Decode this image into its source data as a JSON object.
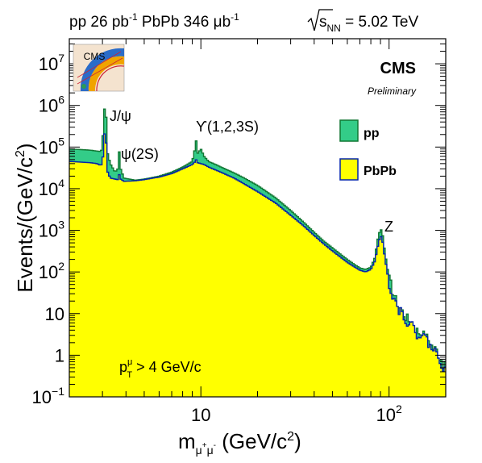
{
  "header": {
    "left_parts": [
      "pp 26 pb",
      "-1",
      " PbPb 346 μb",
      "-1"
    ],
    "right_parts": [
      "s",
      "NN",
      " = 5.02 TeV"
    ]
  },
  "cms": {
    "label": "CMS",
    "sublabel": "Preliminary",
    "logo_text": "CMS"
  },
  "cut_label": {
    "p": "p",
    "sup": "μ",
    "sub": "T",
    "rest": " > 4 GeV/c"
  },
  "colors": {
    "pp_fill": "#33cc88",
    "pp_line": "#117733",
    "pbpb_fill": "#ffff00",
    "pbpb_line": "#0022aa"
  },
  "chart_data": {
    "type": "area",
    "x_scale": "log",
    "y_scale": "log",
    "xlim": [
      2,
      200
    ],
    "ylim": [
      0.1,
      40000000
    ],
    "x_ticks": [
      {
        "v": 10,
        "label": "10"
      },
      {
        "v": 100,
        "label": "10",
        "sup": "2"
      }
    ],
    "y_ticks": [
      {
        "v": 0.1,
        "label": "10",
        "sup": "−1"
      },
      {
        "v": 1,
        "label": "1"
      },
      {
        "v": 10,
        "label": "10"
      },
      {
        "v": 100,
        "label": "10",
        "sup": "2"
      },
      {
        "v": 1000,
        "label": "10",
        "sup": "3"
      },
      {
        "v": 10000,
        "label": "10",
        "sup": "4"
      },
      {
        "v": 100000,
        "label": "10",
        "sup": "5"
      },
      {
        "v": 1000000,
        "label": "10",
        "sup": "6"
      },
      {
        "v": 10000000,
        "label": "10",
        "sup": "7"
      }
    ],
    "xlabel_parts": [
      "m",
      "μ",
      "+",
      "μ",
      "-",
      " (GeV/c",
      "2",
      ")"
    ],
    "ylabel_parts": [
      "Events/(GeV/c",
      "2",
      ")"
    ],
    "legend": [
      {
        "label": "pp",
        "series": 0
      },
      {
        "label": "PbPb",
        "series": 1
      }
    ],
    "legend_placement": "right",
    "annotations": [
      {
        "text": "J/ψ",
        "x": 3.1
      },
      {
        "text": "ψ(2S)",
        "x": 3.7
      },
      {
        "text": "ϒ(1,2,3S)",
        "x": 9.5
      },
      {
        "text": "Z",
        "x": 91
      }
    ],
    "series": [
      {
        "name": "pp",
        "points": [
          [
            2.0,
            90000
          ],
          [
            2.2,
            88000
          ],
          [
            2.4,
            86000
          ],
          [
            2.6,
            84000
          ],
          [
            2.8,
            80000
          ],
          [
            2.95,
            78000
          ],
          [
            3.02,
            200000
          ],
          [
            3.06,
            600000
          ],
          [
            3.1,
            1300000
          ],
          [
            3.14,
            500000
          ],
          [
            3.2,
            70000
          ],
          [
            3.3,
            40000
          ],
          [
            3.5,
            25000
          ],
          [
            3.62,
            30000
          ],
          [
            3.68,
            80000
          ],
          [
            3.75,
            30000
          ],
          [
            3.9,
            18000
          ],
          [
            4.5,
            16000
          ],
          [
            5,
            17000
          ],
          [
            6,
            20000
          ],
          [
            7,
            25000
          ],
          [
            8,
            33000
          ],
          [
            9,
            45000
          ],
          [
            9.3,
            90000
          ],
          [
            9.46,
            150000
          ],
          [
            9.6,
            70000
          ],
          [
            10.0,
            90000
          ],
          [
            10.4,
            60000
          ],
          [
            11,
            45000
          ],
          [
            12,
            38000
          ],
          [
            13,
            32000
          ],
          [
            15,
            24000
          ],
          [
            17,
            18000
          ],
          [
            20,
            12000
          ],
          [
            25,
            6000
          ],
          [
            30,
            3000
          ],
          [
            35,
            1600
          ],
          [
            40,
            900
          ],
          [
            45,
            550
          ],
          [
            50,
            380
          ],
          [
            55,
            270
          ],
          [
            60,
            200
          ],
          [
            65,
            155
          ],
          [
            70,
            125
          ],
          [
            75,
            115
          ],
          [
            80,
            130
          ],
          [
            84,
            220
          ],
          [
            87,
            600
          ],
          [
            90,
            1100
          ],
          [
            92,
            900
          ],
          [
            95,
            300
          ],
          [
            100,
            70
          ],
          [
            105,
            35
          ],
          [
            110,
            18
          ],
          [
            120,
            10
          ],
          [
            130,
            6
          ],
          [
            140,
            4
          ],
          [
            150,
            3.3
          ],
          [
            160,
            2.6
          ],
          [
            170,
            1.6
          ],
          [
            180,
            1.3
          ],
          [
            190,
            0.8
          ],
          [
            200,
            0.5
          ]
        ]
      },
      {
        "name": "PbPb",
        "points": [
          [
            2.0,
            45000
          ],
          [
            2.2,
            44000
          ],
          [
            2.4,
            43000
          ],
          [
            2.6,
            42000
          ],
          [
            2.8,
            40000
          ],
          [
            2.95,
            36000
          ],
          [
            3.02,
            60000
          ],
          [
            3.06,
            160000
          ],
          [
            3.1,
            300000
          ],
          [
            3.14,
            120000
          ],
          [
            3.2,
            25000
          ],
          [
            3.3,
            18000
          ],
          [
            3.5,
            17000
          ],
          [
            3.62,
            16500
          ],
          [
            3.68,
            22000
          ],
          [
            3.75,
            17000
          ],
          [
            3.9,
            15000
          ],
          [
            4.5,
            15500
          ],
          [
            5,
            16500
          ],
          [
            6,
            19000
          ],
          [
            7,
            23000
          ],
          [
            8,
            30000
          ],
          [
            9,
            38000
          ],
          [
            9.3,
            44000
          ],
          [
            9.46,
            50000
          ],
          [
            9.6,
            42000
          ],
          [
            10.0,
            40000
          ],
          [
            10.4,
            38000
          ],
          [
            11,
            33000
          ],
          [
            12,
            28000
          ],
          [
            13,
            24000
          ],
          [
            15,
            18000
          ],
          [
            17,
            13000
          ],
          [
            20,
            8500
          ],
          [
            25,
            4500
          ],
          [
            30,
            2300
          ],
          [
            35,
            1300
          ],
          [
            40,
            750
          ],
          [
            45,
            470
          ],
          [
            50,
            320
          ],
          [
            55,
            230
          ],
          [
            60,
            170
          ],
          [
            65,
            135
          ],
          [
            70,
            110
          ],
          [
            75,
            100
          ],
          [
            80,
            115
          ],
          [
            84,
            180
          ],
          [
            87,
            400
          ],
          [
            90,
            750
          ],
          [
            92,
            620
          ],
          [
            95,
            220
          ],
          [
            100,
            55
          ],
          [
            105,
            28
          ],
          [
            110,
            16
          ],
          [
            120,
            9
          ],
          [
            130,
            5.5
          ],
          [
            140,
            3.6
          ],
          [
            150,
            3
          ],
          [
            160,
            2.3
          ],
          [
            170,
            1.4
          ],
          [
            180,
            1.1
          ],
          [
            190,
            0.7
          ],
          [
            200,
            0.4
          ]
        ]
      }
    ]
  }
}
